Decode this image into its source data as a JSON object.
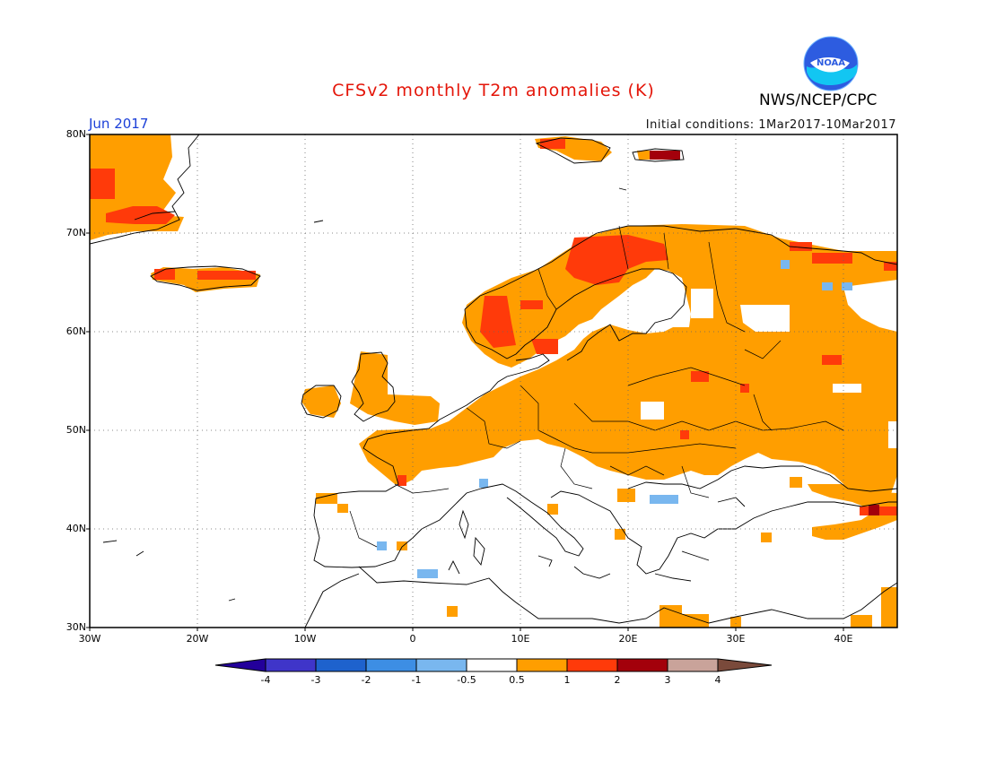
{
  "title": "CFSv2 monthly T2m anomalies (K)",
  "agency": "NWS/NCEP/CPC",
  "logo_text": "NOAA",
  "month": "Jun 2017",
  "initial_conditions": "Initial conditions: 1Mar2017-10Mar2017",
  "colors": {
    "title": "#e4160a",
    "month": "#1b3fd8"
  },
  "lat_labels": [
    "80N",
    "70N",
    "60N",
    "50N",
    "40N",
    "30N"
  ],
  "lon_labels": [
    "30W",
    "20W",
    "10W",
    "0",
    "10E",
    "20E",
    "30E",
    "40E"
  ],
  "colorbar": {
    "labels": [
      "-4",
      "-3",
      "-2",
      "-1",
      "-0.5",
      "0.5",
      "1",
      "2",
      "3",
      "4"
    ],
    "colors": [
      "#23009b",
      "#3f35c9",
      "#1e62cd",
      "#3d8ee4",
      "#79b7ef",
      "#ffffff",
      "#ff9e00",
      "#ff3a0a",
      "#a3000b",
      "#c9a39a",
      "#7a4a3b"
    ]
  }
}
